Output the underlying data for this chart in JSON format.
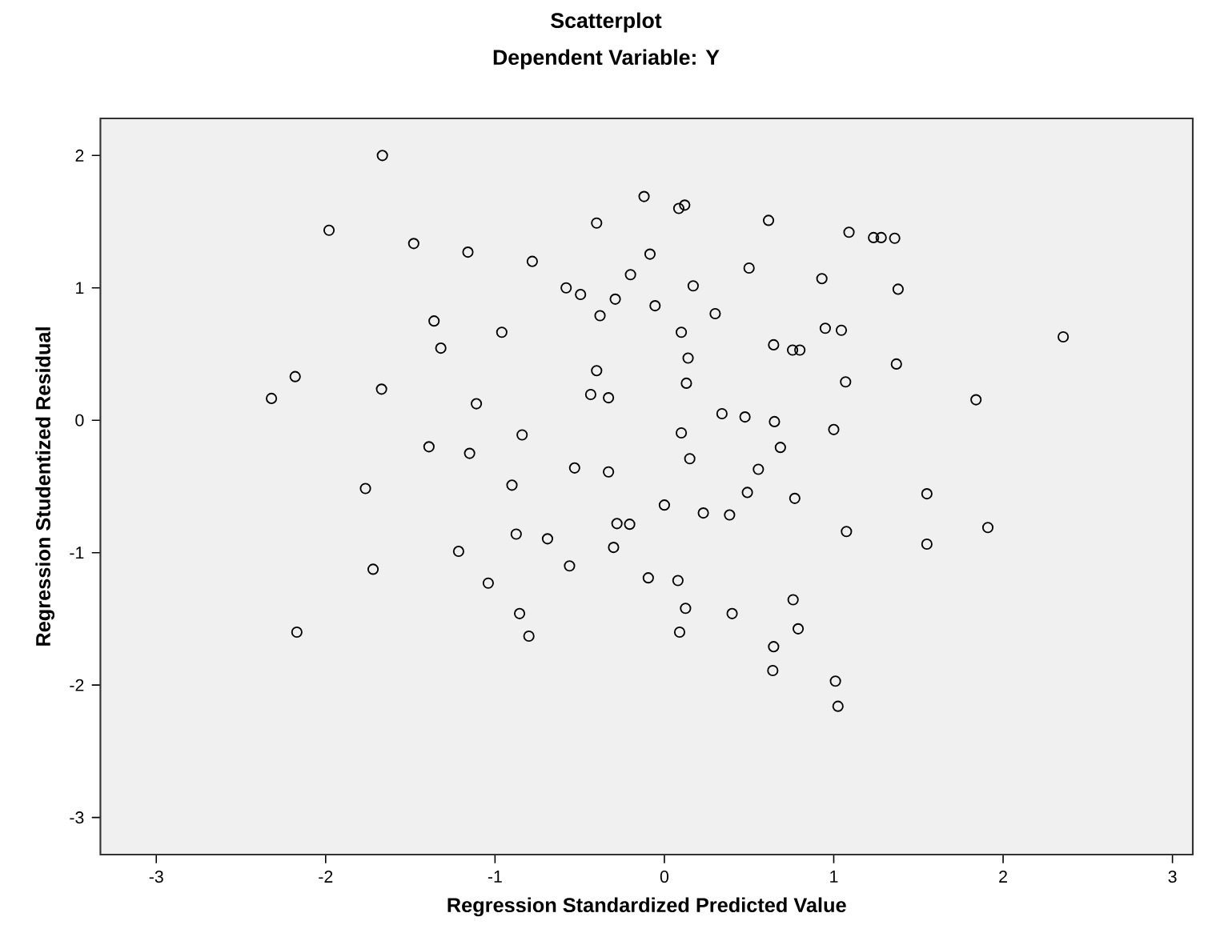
{
  "chart_data": {
    "type": "scatter",
    "title": "Scatterplot",
    "subtitle": "Dependent Variable: Y",
    "xlabel": "Regression Standardized Predicted Value",
    "ylabel": "Regression Studentized Residual",
    "xlim": [
      -3.33,
      3.12
    ],
    "ylim": [
      -3.28,
      2.28
    ],
    "xticks": [
      -3,
      -2,
      -1,
      0,
      1,
      2,
      3
    ],
    "yticks": [
      -3,
      -2,
      -1,
      0,
      1,
      2
    ],
    "marker": "circle",
    "series": [
      {
        "color": "#000000",
        "x": [
          -1.665,
          -1.98,
          -1.48,
          -1.16,
          -0.78,
          -0.4,
          -0.58,
          -0.495,
          -0.29,
          -0.2,
          -0.38,
          -1.36,
          -1.32,
          -0.96,
          -2.18,
          -2.32,
          -1.67,
          -1.11,
          -0.4,
          -0.435,
          -0.33,
          -0.84,
          -0.12,
          0.085,
          0.12,
          0.615,
          1.09,
          1.235,
          1.28,
          1.36,
          -0.085,
          0.17,
          0.5,
          0.93,
          1.38,
          -0.055,
          0.3,
          0.1,
          0.95,
          1.045,
          0.645,
          0.757,
          0.8,
          0.14,
          1.37,
          2.355,
          0.13,
          1.07,
          1.84,
          0.34,
          0.476,
          0.65,
          0.1,
          1.0,
          -1.39,
          -1.15,
          -1.765,
          -0.9,
          -0.53,
          -0.33,
          -0.28,
          -0.205,
          -0.3,
          -0.875,
          -0.69,
          -0.56,
          -1.215,
          -1.72,
          -1.04,
          -0.855,
          -0.8,
          -2.17,
          0.685,
          0.15,
          0.555,
          0.49,
          0.77,
          0.0,
          0.23,
          0.385,
          1.55,
          1.075,
          1.91,
          1.55,
          -0.095,
          0.08,
          0.125,
          0.4,
          0.76,
          0.79,
          0.09,
          0.645,
          0.64,
          1.01,
          1.025
        ],
        "values": [
          2.0,
          1.435,
          1.335,
          1.27,
          1.2,
          1.49,
          1.0,
          0.95,
          0.915,
          1.1,
          0.79,
          0.75,
          0.545,
          0.665,
          0.33,
          0.165,
          0.235,
          0.125,
          0.375,
          0.195,
          0.17,
          -0.11,
          1.69,
          1.6,
          1.625,
          1.51,
          1.42,
          1.38,
          1.38,
          1.375,
          1.255,
          1.015,
          1.15,
          1.07,
          0.99,
          0.865,
          0.805,
          0.665,
          0.695,
          0.68,
          0.57,
          0.53,
          0.53,
          0.47,
          0.425,
          0.63,
          0.28,
          0.29,
          0.155,
          0.05,
          0.025,
          -0.01,
          -0.095,
          -0.07,
          -0.2,
          -0.25,
          -0.515,
          -0.49,
          -0.36,
          -0.39,
          -0.78,
          -0.785,
          -0.96,
          -0.86,
          -0.895,
          -1.1,
          -0.99,
          -1.125,
          -1.23,
          -1.46,
          -1.63,
          -1.6,
          -0.205,
          -0.29,
          -0.37,
          -0.545,
          -0.59,
          -0.64,
          -0.7,
          -0.715,
          -0.555,
          -0.84,
          -0.81,
          -0.935,
          -1.19,
          -1.21,
          -1.42,
          -1.46,
          -1.355,
          -1.575,
          -1.6,
          -1.71,
          -1.89,
          -1.97,
          -2.16
        ]
      }
    ]
  }
}
